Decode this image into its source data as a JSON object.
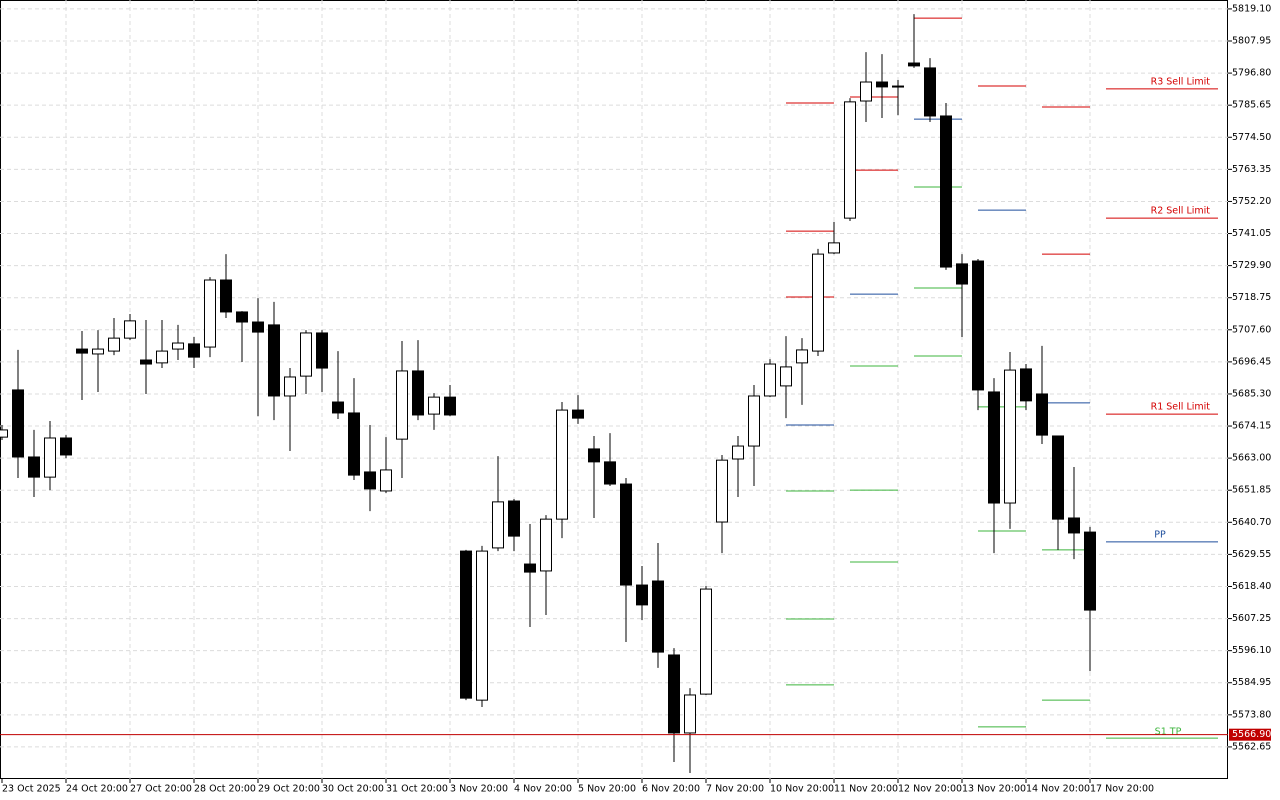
{
  "chart_data": {
    "type": "candlestick",
    "categories": [
      "23 Oct 2025",
      null,
      null,
      null,
      "24 Oct 20:00",
      null,
      null,
      null,
      "27 Oct 20:00",
      null,
      null,
      null,
      "28 Oct 20:00",
      null,
      null,
      null,
      "29 Oct 20:00",
      null,
      null,
      null,
      "30 Oct 20:00",
      null,
      null,
      null,
      "31 Oct 20:00",
      null,
      null,
      null,
      "3 Nov 20:00",
      null,
      null,
      null,
      "4 Nov 20:00",
      null,
      null,
      null,
      "5 Nov 20:00",
      null,
      null,
      null,
      "6 Nov 20:00",
      null,
      null,
      null,
      "7 Nov 20:00",
      null,
      null,
      null,
      "10 Nov 20:00",
      null,
      null,
      null,
      "11 Nov 20:00",
      null,
      null,
      null,
      "12 Nov 20:00",
      null,
      null,
      null,
      "13 Nov 20:00",
      null,
      null,
      null,
      "14 Nov 20:00",
      null,
      null,
      null,
      "17 Nov 20:00"
    ],
    "open": [
      5670.3,
      5686.7,
      5663.4,
      5656.4,
      5670.0,
      5700.9,
      5699.2,
      5700.2,
      5704.7,
      5697.1,
      5696.1,
      5700.9,
      5702.7,
      5701.6,
      5724.9,
      5713.8,
      5710.3,
      5709.3,
      5684.6,
      5691.5,
      5706.5,
      5682.5,
      5678.7,
      5658.2,
      5651.6,
      5669.6,
      5693.3,
      5678.3,
      5684.2,
      5630.7,
      5578.9,
      5631.8,
      5648.1,
      5626.2,
      5623.8,
      5641.8,
      5679.7,
      5666.2,
      5661.7,
      5654.0,
      5618.9,
      5620.3,
      5594.6,
      5567.5,
      5581.0,
      5640.8,
      5662.7,
      5667.2,
      5684.6,
      5688.1,
      5696.1,
      5700.2,
      5734.3,
      5746.4,
      5787.1,
      5793.7,
      5792.3,
      5800.3,
      5798.6,
      5781.9,
      5730.5,
      5731.5,
      5686.0,
      5647.4,
      5694.0,
      5685.3,
      5670.7,
      5642.2,
      5637.3
    ],
    "high": [
      5674.5,
      5700.6,
      5672.8,
      5675.9,
      5671.0,
      5707.2,
      5707.5,
      5711.7,
      5713.1,
      5711.0,
      5711.0,
      5709.3,
      5705.1,
      5725.9,
      5733.9,
      5714.1,
      5718.6,
      5717.3,
      5694.3,
      5707.5,
      5707.5,
      5700.2,
      5690.8,
      5674.5,
      5670.3,
      5703.7,
      5704.0,
      5685.6,
      5688.4,
      5631.1,
      5632.5,
      5663.7,
      5648.8,
      5640.1,
      5643.2,
      5682.5,
      5684.9,
      5670.7,
      5671.7,
      5656.1,
      5625.5,
      5633.5,
      5597.0,
      5583.1,
      5618.6,
      5664.1,
      5670.7,
      5688.4,
      5697.4,
      5705.4,
      5704.7,
      5735.7,
      5745.1,
      5788.1,
      5804.1,
      5803.4,
      5794.4,
      5817.3,
      5802.0,
      5786.4,
      5733.9,
      5732.2,
      5690.8,
      5699.9,
      5695.7,
      5702.0,
      5670.7,
      5659.9,
      5639.1
    ],
    "low": [
      5669.3,
      5656.1,
      5649.5,
      5651.9,
      5663.0,
      5683.2,
      5686.0,
      5698.8,
      5704.0,
      5685.3,
      5694.3,
      5697.1,
      5694.3,
      5698.1,
      5711.7,
      5696.4,
      5677.6,
      5676.2,
      5665.5,
      5685.3,
      5686.0,
      5676.6,
      5655.4,
      5644.6,
      5650.9,
      5656.1,
      5676.2,
      5672.8,
      5677.6,
      5578.9,
      5576.5,
      5630.7,
      5630.7,
      5604.3,
      5608.5,
      5635.2,
      5674.9,
      5642.2,
      5653.3,
      5599.1,
      5606.7,
      5590.1,
      5557.4,
      5553.6,
      5580.7,
      5630.0,
      5649.5,
      5653.3,
      5684.2,
      5676.9,
      5681.5,
      5698.5,
      5733.9,
      5745.4,
      5779.8,
      5781.2,
      5782.2,
      5798.6,
      5779.8,
      5728.4,
      5705.1,
      5679.7,
      5630.0,
      5638.4,
      5679.7,
      5667.9,
      5631.1,
      5627.9,
      5589.0
    ],
    "close": [
      5672.8,
      5663.4,
      5656.4,
      5670.0,
      5664.1,
      5699.5,
      5700.9,
      5704.7,
      5710.7,
      5695.7,
      5700.2,
      5703.0,
      5698.1,
      5724.9,
      5713.8,
      5710.3,
      5706.8,
      5684.6,
      5691.2,
      5706.5,
      5694.3,
      5678.7,
      5657.1,
      5652.3,
      5658.9,
      5693.3,
      5678.0,
      5684.2,
      5678.0,
      5579.6,
      5630.7,
      5647.8,
      5635.9,
      5623.4,
      5641.8,
      5679.7,
      5676.9,
      5661.7,
      5654.0,
      5618.9,
      5612.0,
      5595.6,
      5567.5,
      5580.7,
      5617.5,
      5662.3,
      5667.2,
      5684.6,
      5695.7,
      5694.7,
      5700.6,
      5733.9,
      5737.8,
      5786.8,
      5793.7,
      5792.0,
      5792.0,
      5799.3,
      5781.9,
      5729.4,
      5723.5,
      5686.7,
      5647.4,
      5693.6,
      5682.9,
      5671.0,
      5641.8,
      5637.0,
      5610.2
    ],
    "ylim": [
      5551.5,
      5822.2
    ],
    "yticks": [
      {
        "value": 5819.1,
        "label": "5819.10"
      },
      {
        "value": 5807.95,
        "label": "5807.95"
      },
      {
        "value": 5796.8,
        "label": "5796.80"
      },
      {
        "value": 5785.65,
        "label": "5785.65"
      },
      {
        "value": 5774.5,
        "label": "5774.50"
      },
      {
        "value": 5763.35,
        "label": "5763.35"
      },
      {
        "value": 5752.2,
        "label": "5752.20"
      },
      {
        "value": 5741.05,
        "label": "5741.05"
      },
      {
        "value": 5729.9,
        "label": "5729.90"
      },
      {
        "value": 5718.75,
        "label": "5718.75"
      },
      {
        "value": 5707.6,
        "label": "5707.60"
      },
      {
        "value": 5696.45,
        "label": "5696.45"
      },
      {
        "value": 5685.3,
        "label": "5685.30"
      },
      {
        "value": 5674.15,
        "label": "5674.15"
      },
      {
        "value": 5663,
        "label": "5663.00"
      },
      {
        "value": 5651.85,
        "label": "5651.85"
      },
      {
        "value": 5640.7,
        "label": "5640.70"
      },
      {
        "value": 5629.55,
        "label": "5629.55"
      },
      {
        "value": 5618.4,
        "label": "5618.40"
      },
      {
        "value": 5607.25,
        "label": "5607.25"
      },
      {
        "value": 5596.1,
        "label": "5596.10"
      },
      {
        "value": 5584.95,
        "label": "5584.95"
      },
      {
        "value": 5573.8,
        "label": "5573.80"
      },
      {
        "value": 5562.65,
        "label": "5562.65"
      }
    ],
    "grid": true,
    "up_color": "#ffffff",
    "down_color": "#000000",
    "current_price": {
      "value": 5566.9,
      "label": "5566.90",
      "color": "#c00000"
    },
    "level_colors": {
      "resistance": "#d40000",
      "pivot": "#1f4e9c",
      "support": "#3cb43c"
    },
    "pivot_levels": [
      {
        "x": [
          49,
          52
        ],
        "resistance": [
          5786.4,
          5741.9,
          5719.0
        ],
        "pivot": 5674.5,
        "support": [
          5651.6,
          5607.1,
          5584.2
        ]
      },
      {
        "x": [
          53,
          56
        ],
        "resistance": [
          5788.5,
          5763.1
        ],
        "pivot": 5720.0,
        "support": [
          5695.0,
          5651.9,
          5626.9
        ]
      },
      {
        "x": [
          57,
          60
        ],
        "resistance": [
          5815.9
        ],
        "pivot": 5780.8,
        "support": [
          5757.2,
          5722.1,
          5698.5
        ]
      },
      {
        "x": [
          61,
          64
        ],
        "resistance": [
          5792.3
        ],
        "pivot": 5749.2,
        "support": [
          5680.8,
          5637.7,
          5569.6
        ]
      },
      {
        "x": [
          65,
          68
        ],
        "resistance": [
          5785.0,
          5733.9
        ],
        "pivot": 5682.2,
        "support": [
          5631.1,
          5578.9
        ]
      },
      {
        "x": [
          69,
          76
        ],
        "resistance": [
          5791.3,
          5746.4,
          5678.3
        ],
        "resistance_labels": [
          "R3 Sell Limit",
          "R2 Sell Limit",
          "R1 Sell Limit"
        ],
        "pivot": 5633.9,
        "pivot_label": "PP",
        "support": [
          5565.7
        ],
        "support_labels": [
          "S1 TP"
        ]
      }
    ]
  }
}
